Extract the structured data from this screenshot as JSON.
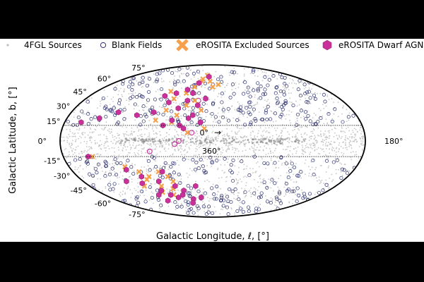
{
  "chart_data": {
    "type": "scatter",
    "projection": "mollweide",
    "xlabel": "Galactic Longitude, ℓ, [°]",
    "ylabel": "Galactic Latitude, b, [°]",
    "x_ticks": [
      "0°",
      "360°",
      "180°"
    ],
    "longitude_arrow": "→",
    "y_ticks": [
      {
        "value": 75,
        "label": "75°"
      },
      {
        "value": 60,
        "label": "60°"
      },
      {
        "value": 45,
        "label": "45°"
      },
      {
        "value": 30,
        "label": "30°"
      },
      {
        "value": 15,
        "label": "15°"
      },
      {
        "value": 0,
        "label": "0°"
      },
      {
        "value": -15,
        "label": "-15°"
      },
      {
        "value": -30,
        "label": "-30°"
      },
      {
        "value": -45,
        "label": "-45°"
      },
      {
        "value": -60,
        "label": "-60°"
      },
      {
        "value": -75,
        "label": "-75°"
      }
    ],
    "latitude_cuts": [
      15,
      -15
    ],
    "legend_position": "top",
    "series": [
      {
        "name": "4FGL Sources",
        "marker": "dot",
        "color": "#bdbdbd"
      },
      {
        "name": "Blank Fields",
        "marker": "open-circle",
        "color": "#2b2f6e"
      },
      {
        "name": "eROSITA Excluded Sources",
        "marker": "x",
        "color": "#f5a04a"
      },
      {
        "name": "eROSITA Dwarf AGNs",
        "marker": "hexagon",
        "color": "#c9309a"
      }
    ],
    "points": {
      "excluded": [
        [
          -5,
          62
        ],
        [
          -12,
          70
        ],
        [
          -20,
          65
        ],
        [
          10,
          58
        ],
        [
          -30,
          55
        ],
        [
          -40,
          48
        ],
        [
          -55,
          42
        ],
        [
          -25,
          40
        ],
        [
          -35,
          35
        ],
        [
          -60,
          30
        ],
        [
          -15,
          30
        ],
        [
          -45,
          25
        ],
        [
          -70,
          20
        ],
        [
          -50,
          18
        ],
        [
          -10,
          12
        ],
        [
          -30,
          8
        ],
        [
          -20,
          62
        ],
        [
          0,
          55
        ],
        [
          -65,
          50
        ],
        [
          -145,
          -15
        ],
        [
          -110,
          -25
        ],
        [
          -95,
          -30
        ],
        [
          -90,
          -38
        ],
        [
          -75,
          -45
        ],
        [
          -80,
          -52
        ],
        [
          -65,
          -55
        ],
        [
          -70,
          -30
        ],
        [
          -55,
          -40
        ],
        [
          -60,
          -48
        ],
        [
          -100,
          -45
        ],
        [
          -85,
          -35
        ],
        [
          -60,
          -35
        ]
      ],
      "dwarf": [
        [
          -8,
          68
        ],
        [
          -25,
          60
        ],
        [
          -40,
          52
        ],
        [
          -55,
          48
        ],
        [
          -70,
          45
        ],
        [
          -35,
          40
        ],
        [
          -60,
          38
        ],
        [
          -20,
          35
        ],
        [
          -45,
          32
        ],
        [
          -75,
          28
        ],
        [
          -95,
          25
        ],
        [
          -120,
          28
        ],
        [
          -140,
          22
        ],
        [
          -160,
          18
        ],
        [
          -25,
          25
        ],
        [
          -50,
          20
        ],
        [
          -30,
          22
        ],
        [
          -40,
          15
        ],
        [
          -35,
          12
        ],
        [
          -15,
          18
        ],
        [
          -60,
          15
        ],
        [
          -10,
          42
        ],
        [
          -30,
          48
        ],
        [
          -110,
          -28
        ],
        [
          -95,
          -35
        ],
        [
          -100,
          -42
        ],
        [
          -80,
          -50
        ],
        [
          -70,
          -55
        ],
        [
          -60,
          -58
        ],
        [
          -85,
          -62
        ],
        [
          -55,
          -45
        ],
        [
          -45,
          -50
        ],
        [
          -35,
          -60
        ],
        [
          -20,
          -58
        ],
        [
          -120,
          -40
        ],
        [
          -75,
          -40
        ],
        [
          -65,
          -30
        ],
        [
          -50,
          -55
        ],
        [
          -40,
          -65
        ],
        [
          -25,
          -45
        ],
        [
          -150,
          -15
        ],
        [
          -90,
          -55
        ]
      ],
      "blank_highlight": [
        [
          -20,
          40
        ],
        [
          -25,
          8
        ],
        [
          -40,
          0
        ],
        [
          -75,
          -10
        ],
        [
          -45,
          -3
        ]
      ]
    }
  }
}
